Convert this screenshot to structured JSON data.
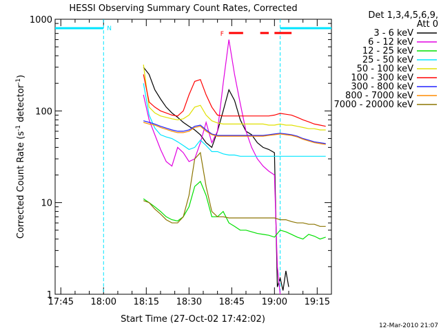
{
  "chart_data": {
    "type": "line",
    "title": "HESSI Observing Summary Count Rates, Corrected",
    "xlabel": "Start Time (27-Oct-02 17:42:02)",
    "ylabel": "Corrected Count Rate (s⁻¹ detector⁻¹)",
    "ylabel_main": "Corrected Count Rate (s",
    "ylabel_sup1": "-1",
    "ylabel_mid": " detector",
    "ylabel_sup2": "-1",
    "ylabel_end": ")",
    "yscale": "log",
    "ylim": [
      1,
      1000
    ],
    "xlim_minutes": [
      -17,
      80
    ],
    "x_tick_minutes": [
      -15,
      0,
      15,
      30,
      45,
      60,
      75
    ],
    "x_tick_labels": [
      "17:45",
      "18:00",
      "18:15",
      "18:30",
      "18:45",
      "19:00",
      "19:15"
    ],
    "y_tick_values": [
      1,
      10,
      100,
      1000
    ],
    "y_tick_labels": [
      "1",
      "10",
      "100",
      "1000"
    ],
    "legend": {
      "placement": "right",
      "header1": "Det 1,3,4,5,6,9,",
      "header2": "Att 0"
    },
    "annotations": {
      "night_label": "N",
      "flare_label": "F",
      "footer": "12-Mar-2010 21:07",
      "night_bar_color": "#00e5ff",
      "flare_bar_color": "#ff0000"
    },
    "series": [
      {
        "name": "3 - 6 keV",
        "color": "#000000",
        "x": [
          14,
          16,
          18,
          20,
          22,
          24,
          26,
          28,
          30,
          32,
          34,
          36,
          38,
          40,
          42,
          44,
          46,
          48,
          50,
          52,
          54,
          56,
          58,
          60,
          61,
          62,
          63,
          64,
          65
        ],
        "y": [
          300,
          250,
          170,
          135,
          110,
          95,
          85,
          75,
          68,
          62,
          55,
          45,
          40,
          60,
          100,
          170,
          130,
          80,
          60,
          55,
          45,
          40,
          38,
          35,
          1.2,
          1.5,
          1.1,
          1.8,
          1.2
        ]
      },
      {
        "name": "6 - 12 keV",
        "color": "#e100e1",
        "x": [
          14,
          16,
          18,
          20,
          22,
          24,
          26,
          28,
          30,
          32,
          34,
          36,
          38,
          40,
          42,
          44,
          46,
          48,
          50,
          52,
          54,
          56,
          58,
          60,
          61,
          62
        ],
        "y": [
          150,
          80,
          55,
          38,
          28,
          25,
          40,
          35,
          28,
          30,
          45,
          75,
          45,
          60,
          200,
          600,
          250,
          120,
          60,
          40,
          30,
          25,
          22,
          20,
          2,
          1
        ]
      },
      {
        "name": "12 - 25 keV",
        "color": "#00e000",
        "x": [
          14,
          16,
          18,
          20,
          22,
          24,
          26,
          28,
          30,
          32,
          34,
          36,
          38,
          40,
          42,
          44,
          46,
          48,
          50,
          52,
          54,
          56,
          58,
          60,
          62,
          64,
          66,
          68,
          70,
          72,
          74,
          76,
          78
        ],
        "y": [
          11,
          10,
          9,
          8,
          7,
          6.5,
          6.3,
          7,
          9,
          15,
          17,
          12,
          7,
          7,
          8,
          6,
          5.5,
          5,
          5,
          4.8,
          4.6,
          4.5,
          4.4,
          4.2,
          5,
          4.8,
          4.5,
          4.2,
          4,
          4.5,
          4.3,
          4,
          4.2
        ]
      },
      {
        "name": "25 - 50 keV",
        "color": "#00e5ff",
        "x": [
          14,
          16,
          18,
          20,
          22,
          24,
          26,
          28,
          30,
          32,
          34,
          36,
          38,
          40,
          42,
          44,
          46,
          48,
          50,
          52,
          54,
          56,
          58,
          60,
          62,
          64,
          66,
          68,
          70,
          72,
          74,
          76,
          78
        ],
        "y": [
          200,
          90,
          65,
          55,
          52,
          50,
          46,
          42,
          38,
          40,
          48,
          42,
          36,
          36,
          34,
          33,
          33,
          32,
          32,
          32,
          32,
          32,
          32,
          32,
          32,
          32,
          32,
          32,
          32,
          32,
          32,
          32,
          32
        ]
      },
      {
        "name": "50 - 100 keV",
        "color": "#e0e000",
        "x": [
          14,
          16,
          18,
          20,
          22,
          24,
          26,
          28,
          30,
          32,
          34,
          36,
          38,
          40,
          42,
          44,
          46,
          48,
          50,
          52,
          54,
          56,
          58,
          60,
          62,
          64,
          66,
          68,
          70,
          72,
          74,
          76,
          78
        ],
        "y": [
          320,
          110,
          95,
          88,
          85,
          82,
          80,
          82,
          90,
          110,
          115,
          90,
          78,
          74,
          72,
          72,
          72,
          72,
          72,
          72,
          72,
          72,
          70,
          70,
          72,
          70,
          70,
          68,
          66,
          64,
          64,
          62,
          62
        ]
      },
      {
        "name": "100 - 300 keV",
        "color": "#ff0000",
        "x": [
          14,
          16,
          18,
          20,
          22,
          24,
          26,
          28,
          30,
          32,
          34,
          36,
          38,
          40,
          42,
          44,
          46,
          48,
          50,
          52,
          54,
          56,
          58,
          60,
          62,
          64,
          66,
          68,
          70,
          72,
          74,
          76,
          78
        ],
        "y": [
          250,
          125,
          110,
          100,
          95,
          90,
          88,
          100,
          150,
          210,
          220,
          150,
          110,
          90,
          88,
          88,
          88,
          88,
          88,
          88,
          88,
          88,
          88,
          90,
          94,
          92,
          90,
          85,
          80,
          76,
          72,
          70,
          68
        ]
      },
      {
        "name": "300 - 800 keV",
        "color": "#2020ff",
        "x": [
          14,
          16,
          18,
          20,
          22,
          24,
          26,
          28,
          30,
          32,
          34,
          36,
          38,
          40,
          42,
          44,
          46,
          48,
          50,
          52,
          54,
          56,
          58,
          60,
          62,
          64,
          66,
          68,
          70,
          72,
          74,
          76,
          78
        ],
        "y": [
          78,
          75,
          72,
          68,
          65,
          62,
          60,
          60,
          62,
          68,
          70,
          62,
          56,
          54,
          54,
          54,
          54,
          54,
          54,
          54,
          54,
          54,
          55,
          56,
          57,
          56,
          55,
          53,
          50,
          48,
          46,
          45,
          44
        ]
      },
      {
        "name": "800 - 7000 keV",
        "color": "#ff8c00",
        "x": [
          14,
          16,
          18,
          20,
          22,
          24,
          26,
          28,
          30,
          32,
          34,
          36,
          38,
          40,
          42,
          44,
          46,
          48,
          50,
          52,
          54,
          56,
          58,
          60,
          62,
          64,
          66,
          68,
          70,
          72,
          74,
          76,
          78
        ],
        "y": [
          75,
          72,
          70,
          66,
          63,
          60,
          58,
          58,
          60,
          66,
          68,
          60,
          55,
          53,
          53,
          53,
          53,
          53,
          53,
          53,
          53,
          53,
          54,
          55,
          56,
          55,
          54,
          52,
          49,
          47,
          45,
          44,
          43
        ]
      },
      {
        "name": "7000 - 20000 keV",
        "color": "#8b7500",
        "x": [
          14,
          16,
          18,
          20,
          22,
          24,
          26,
          28,
          30,
          32,
          34,
          36,
          38,
          40,
          42,
          44,
          46,
          48,
          50,
          52,
          54,
          56,
          58,
          60,
          62,
          64,
          66,
          68,
          70,
          72,
          74,
          76,
          78
        ],
        "y": [
          10.5,
          10,
          8.5,
          7.5,
          6.5,
          6,
          6,
          7,
          12,
          30,
          35,
          15,
          8,
          7,
          7,
          6.8,
          6.8,
          6.8,
          6.8,
          6.8,
          6.8,
          6.8,
          6.8,
          6.8,
          6.5,
          6.5,
          6.2,
          6,
          6,
          5.8,
          5.8,
          5.5,
          5.5
        ]
      }
    ],
    "night_intervals_minutes": [
      [
        -17,
        0
      ],
      [
        62,
        80
      ]
    ],
    "flare_intervals_minutes": [
      [
        44,
        49
      ],
      [
        55,
        58
      ],
      [
        60,
        66
      ]
    ],
    "flare_label_minute": 41
  }
}
